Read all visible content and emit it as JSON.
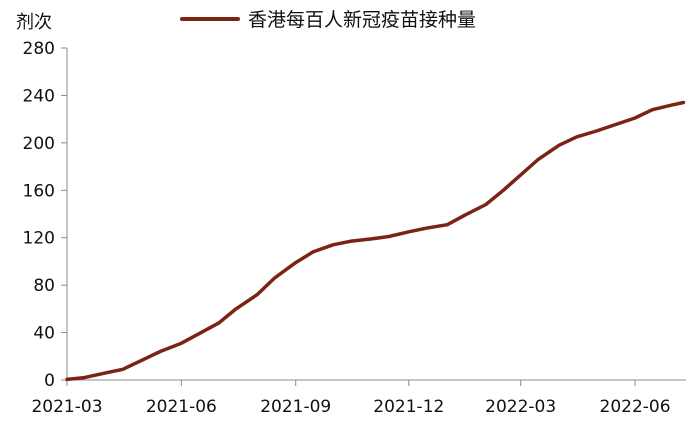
{
  "chart_data": {
    "type": "line",
    "ylabel": "剂次",
    "ylim": [
      0,
      280
    ],
    "yticks": [
      0,
      40,
      80,
      120,
      160,
      200,
      240,
      280
    ],
    "xticks": [
      "2021-03",
      "2021-06",
      "2021-09",
      "2021-12",
      "2022-03",
      "2022-06"
    ],
    "legend_position": "top",
    "grid": false,
    "line_color": "#7b2413",
    "series": [
      {
        "name": "香港每百人新冠疫苗接种量",
        "x": [
          "2021-03-01",
          "2021-03-15",
          "2021-04-01",
          "2021-04-15",
          "2021-05-01",
          "2021-05-15",
          "2021-06-01",
          "2021-06-15",
          "2021-07-01",
          "2021-07-15",
          "2021-08-01",
          "2021-08-15",
          "2021-09-01",
          "2021-09-15",
          "2021-10-01",
          "2021-10-15",
          "2021-11-01",
          "2021-11-15",
          "2021-12-01",
          "2021-12-15",
          "2022-01-01",
          "2022-01-15",
          "2022-02-01",
          "2022-02-15",
          "2022-03-01",
          "2022-03-15",
          "2022-04-01",
          "2022-04-15",
          "2022-05-01",
          "2022-05-15",
          "2022-06-01",
          "2022-06-15",
          "2022-07-01",
          "2022-07-10"
        ],
        "values": [
          0.5,
          2,
          6,
          9,
          17,
          24,
          31,
          39,
          48,
          60,
          72,
          86,
          99,
          108,
          114,
          117,
          119,
          121,
          125,
          128,
          131,
          139,
          148,
          160,
          173,
          186,
          198,
          205,
          210,
          215,
          221,
          228,
          232,
          234
        ]
      }
    ]
  }
}
